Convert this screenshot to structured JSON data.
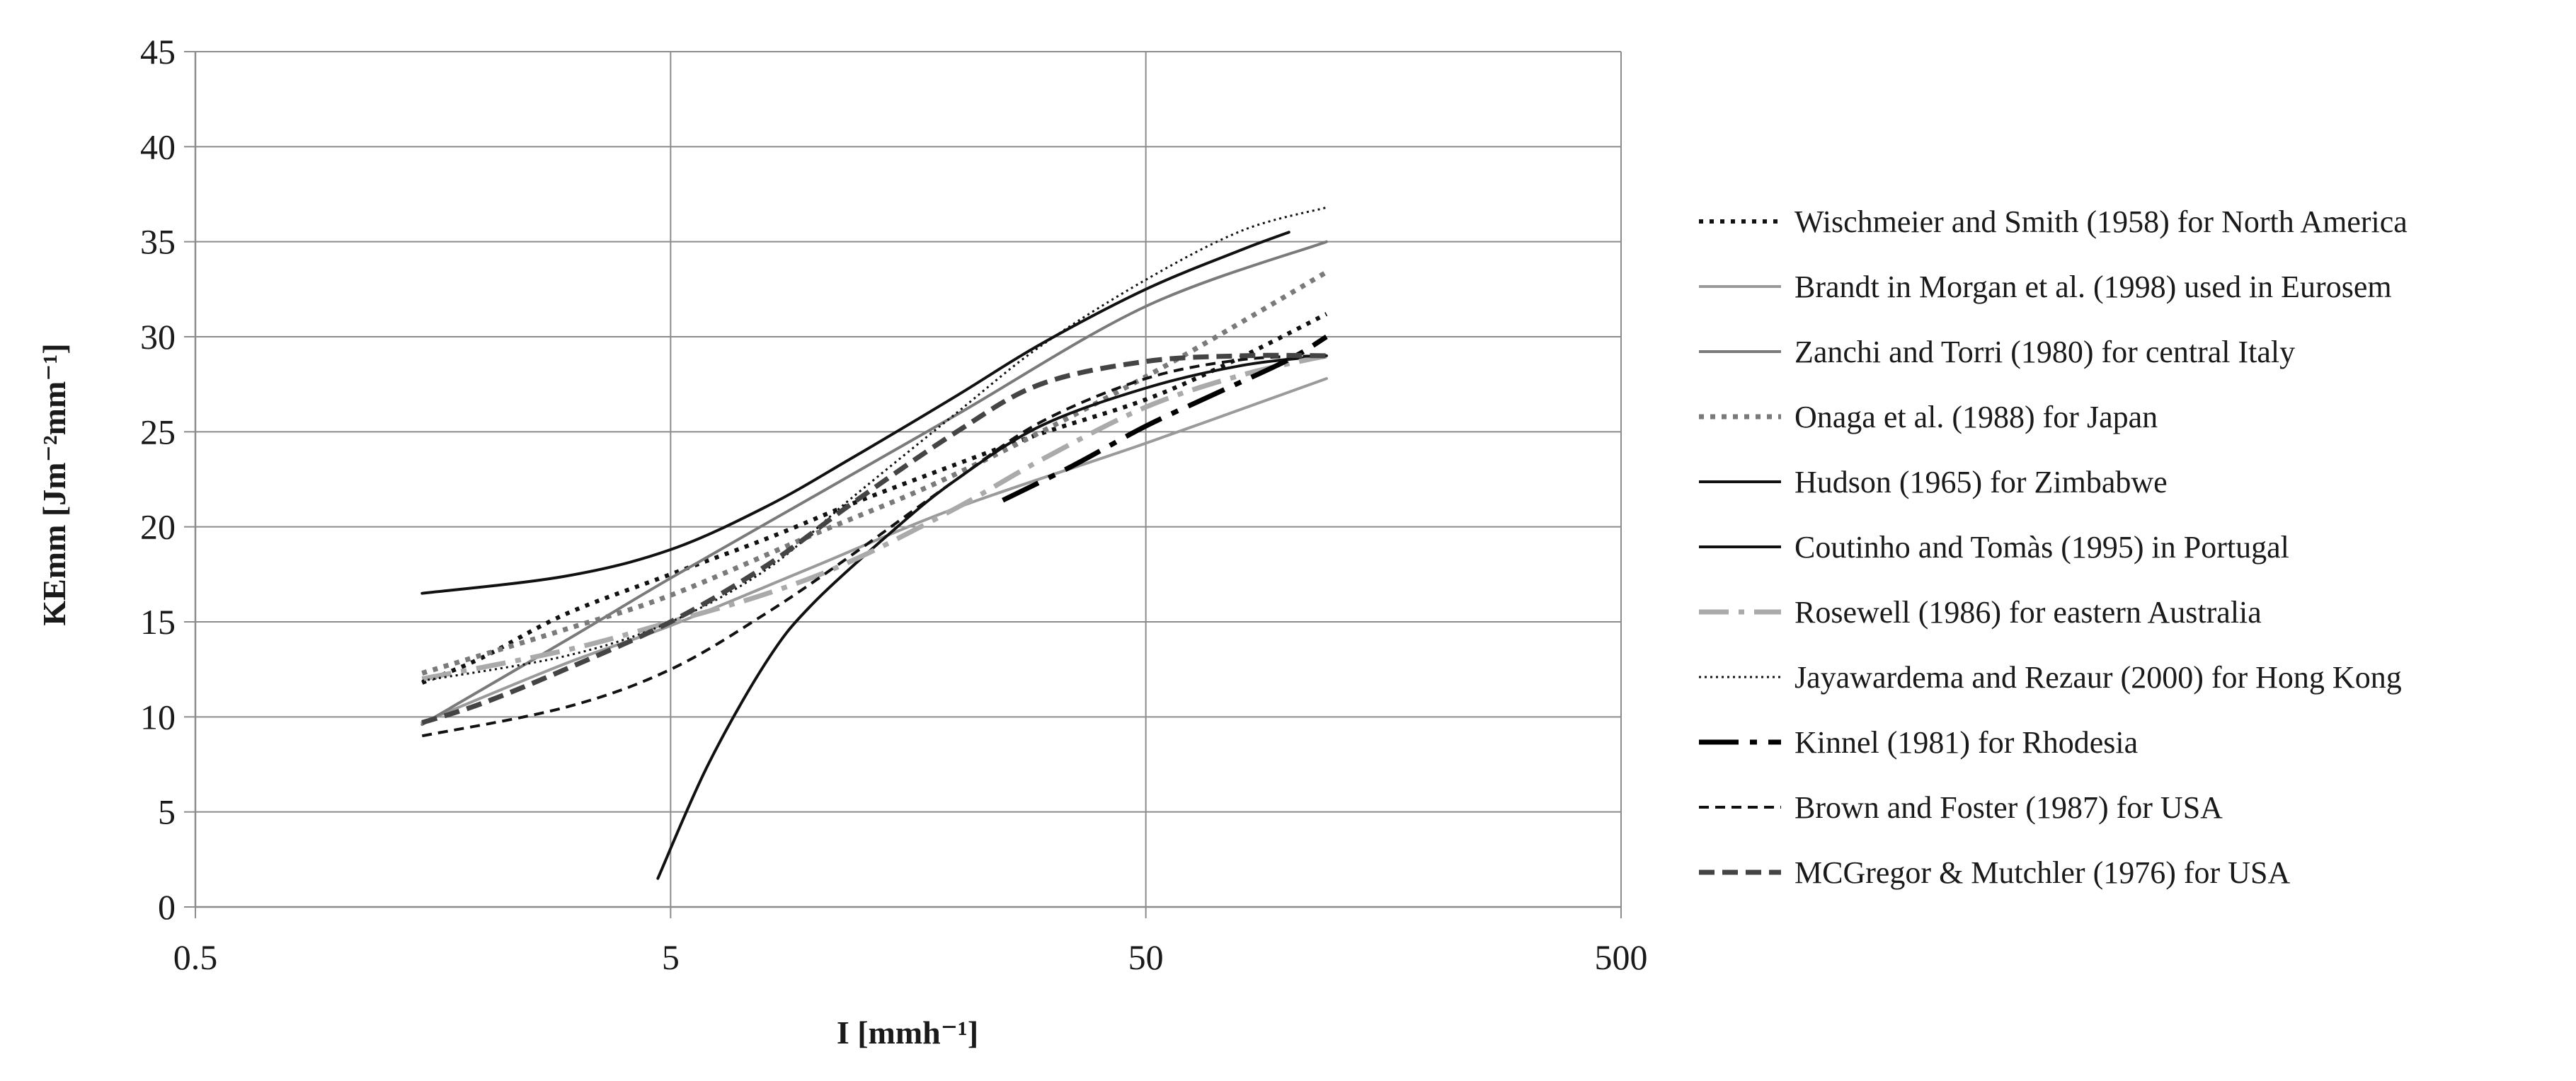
{
  "chart_data": {
    "type": "line",
    "title": "",
    "xlabel": "I [mmh⁻¹]",
    "ylabel": "KEmm  [Jm⁻²mm⁻¹]",
    "x_scale": "log",
    "xlim": [
      0.5,
      500
    ],
    "ylim": [
      0,
      45
    ],
    "x_ticks": [
      "0.5",
      "5",
      "50",
      "500"
    ],
    "y_ticks": [
      "0",
      "5",
      "10",
      "15",
      "20",
      "25",
      "30",
      "35",
      "40",
      "45"
    ],
    "grid": "major, both axes",
    "legend_position": "right",
    "series": [
      {
        "name": "Wischmeier and Smith (1958) for North America",
        "color": "#111111",
        "dash": "dotted",
        "x": [
          1.5,
          2,
          3,
          5,
          8,
          12,
          20,
          30,
          50,
          76,
          120
        ],
        "y": [
          11.8,
          13.1,
          15.4,
          17.5,
          19.4,
          21.2,
          23.3,
          24.9,
          26.7,
          28.7,
          31.2
        ]
      },
      {
        "name": "Brandt in Morgan et al. (1998) used in Eurosem",
        "color": "#9a9a9a",
        "dash": "solid",
        "x": [
          1.5,
          3,
          5,
          10,
          20,
          50,
          120
        ],
        "y": [
          9.7,
          12.8,
          14.8,
          17.9,
          21.0,
          24.4,
          27.8
        ]
      },
      {
        "name": "Zanchi and Torri (1980) for central Italy",
        "color": "#7a7a7a",
        "dash": "solid",
        "x": [
          1.5,
          3,
          5,
          10,
          20,
          50,
          120
        ],
        "y": [
          9.6,
          14.0,
          17.3,
          21.6,
          25.9,
          31.6,
          35.0
        ]
      },
      {
        "name": "Onaga et al. (1988) for Japan",
        "color": "#7a7a7a",
        "dash": "dots-heavy",
        "x": [
          1.5,
          3,
          5,
          10,
          20,
          50,
          120
        ],
        "y": [
          12.3,
          14.6,
          16.4,
          19.6,
          22.8,
          27.9,
          33.4
        ]
      },
      {
        "name": "Hudson (1965) for Zimbabwe",
        "color": "#111111",
        "dash": "solid",
        "x": [
          1.5,
          3,
          5,
          8,
          12,
          20,
          30,
          50,
          80,
          100
        ],
        "y": [
          16.5,
          17.4,
          18.8,
          21.1,
          23.6,
          26.9,
          29.6,
          32.5,
          34.6,
          35.5
        ]
      },
      {
        "name": "Coutinho and Tomàs (1995) in Portugal",
        "color": "#111111",
        "dash": "solid",
        "x": [
          4.7,
          6,
          8,
          10,
          15,
          20,
          30,
          50,
          80,
          120
        ],
        "y": [
          1.5,
          7.5,
          13.0,
          16.0,
          20.0,
          22.5,
          25.3,
          27.3,
          28.5,
          29.0
        ]
      },
      {
        "name": "Rosewell (1986) for eastern Australia",
        "color": "#aaaaaa",
        "dash": "dash-dot",
        "x": [
          1.5,
          3,
          5,
          8,
          12,
          20,
          30,
          50,
          80,
          120
        ],
        "y": [
          12.0,
          13.5,
          15.0,
          16.5,
          18.2,
          21.0,
          23.5,
          26.3,
          28.0,
          29.0
        ]
      },
      {
        "name": "Jayawardema and Rezaur (2000) for Hong Kong",
        "color": "#111111",
        "dash": "fine-dotted",
        "x": [
          1.5,
          3,
          5,
          8,
          12,
          20,
          30,
          50,
          80,
          120
        ],
        "y": [
          11.9,
          13.2,
          15.0,
          17.8,
          21.5,
          26.0,
          29.5,
          33.0,
          35.6,
          36.8
        ]
      },
      {
        "name": "Kinnel (1981) for Rhodesia",
        "color": "#000000",
        "dash": "long-dash-dot",
        "x": [
          25,
          35,
          50,
          70,
          100,
          120
        ],
        "y": [
          21.4,
          23.2,
          25.3,
          27.0,
          28.8,
          30.0
        ]
      },
      {
        "name": "Brown and Foster (1987) for USA",
        "color": "#111111",
        "dash": "dashed",
        "x": [
          1.5,
          3,
          5,
          8,
          12,
          20,
          30,
          50,
          80,
          120
        ],
        "y": [
          9.0,
          10.5,
          12.5,
          15.5,
          18.5,
          22.5,
          25.5,
          27.8,
          28.8,
          29.0
        ]
      },
      {
        "name": "MCGregor & Mutchler (1976) for USA",
        "color": "#444444",
        "dash": "dashed-heavy",
        "x": [
          1.5,
          2,
          3,
          5,
          8,
          12,
          20,
          30,
          50,
          80,
          120
        ],
        "y": [
          9.7,
          10.7,
          12.5,
          15.0,
          18.0,
          21.2,
          25.0,
          27.5,
          28.7,
          29.0,
          29.0
        ]
      }
    ]
  }
}
